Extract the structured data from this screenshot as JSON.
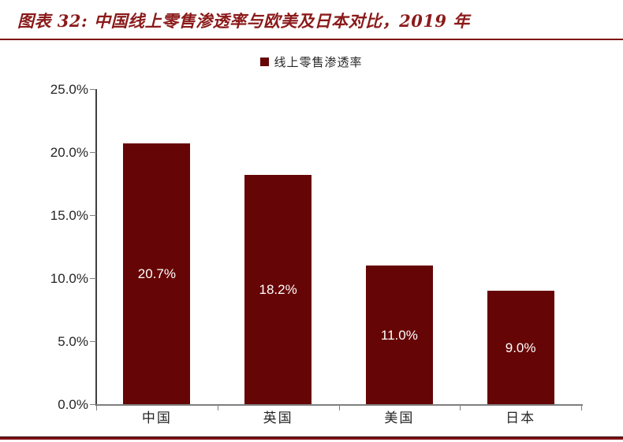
{
  "header": {
    "title": "图表 32:  中国线上零售渗透率与欧美及日本对比，2019 年"
  },
  "legend": {
    "label": "线上零售渗透率"
  },
  "colors": {
    "bar": "#660505",
    "title_text": "#8b1a1a",
    "rule": "#7f1416",
    "value_label": "#ffffff",
    "axis_y": "#404040",
    "axis_x": "#7f7f7f",
    "tick_label": "#262626"
  },
  "chart_data": {
    "type": "bar",
    "title": "图表 32: 中国线上零售渗透率与欧美及日本对比，2019 年",
    "categories": [
      "中国",
      "英国",
      "美国",
      "日本"
    ],
    "values": [
      20.7,
      18.2,
      11.0,
      9.0
    ],
    "value_labels": [
      "20.7%",
      "18.2%",
      "11.0%",
      "9.0%"
    ],
    "xlabel": "",
    "ylabel": "",
    "ylim": [
      0,
      25
    ],
    "yticks": [
      0,
      5,
      10,
      15,
      20,
      25
    ],
    "ytick_labels": [
      "0.0%",
      "5.0%",
      "10.0%",
      "15.0%",
      "20.0%",
      "25.0%"
    ],
    "grid": false,
    "legend_entries": [
      "线上零售渗透率"
    ],
    "legend_position": "top-center",
    "bar_color": "#660505"
  }
}
